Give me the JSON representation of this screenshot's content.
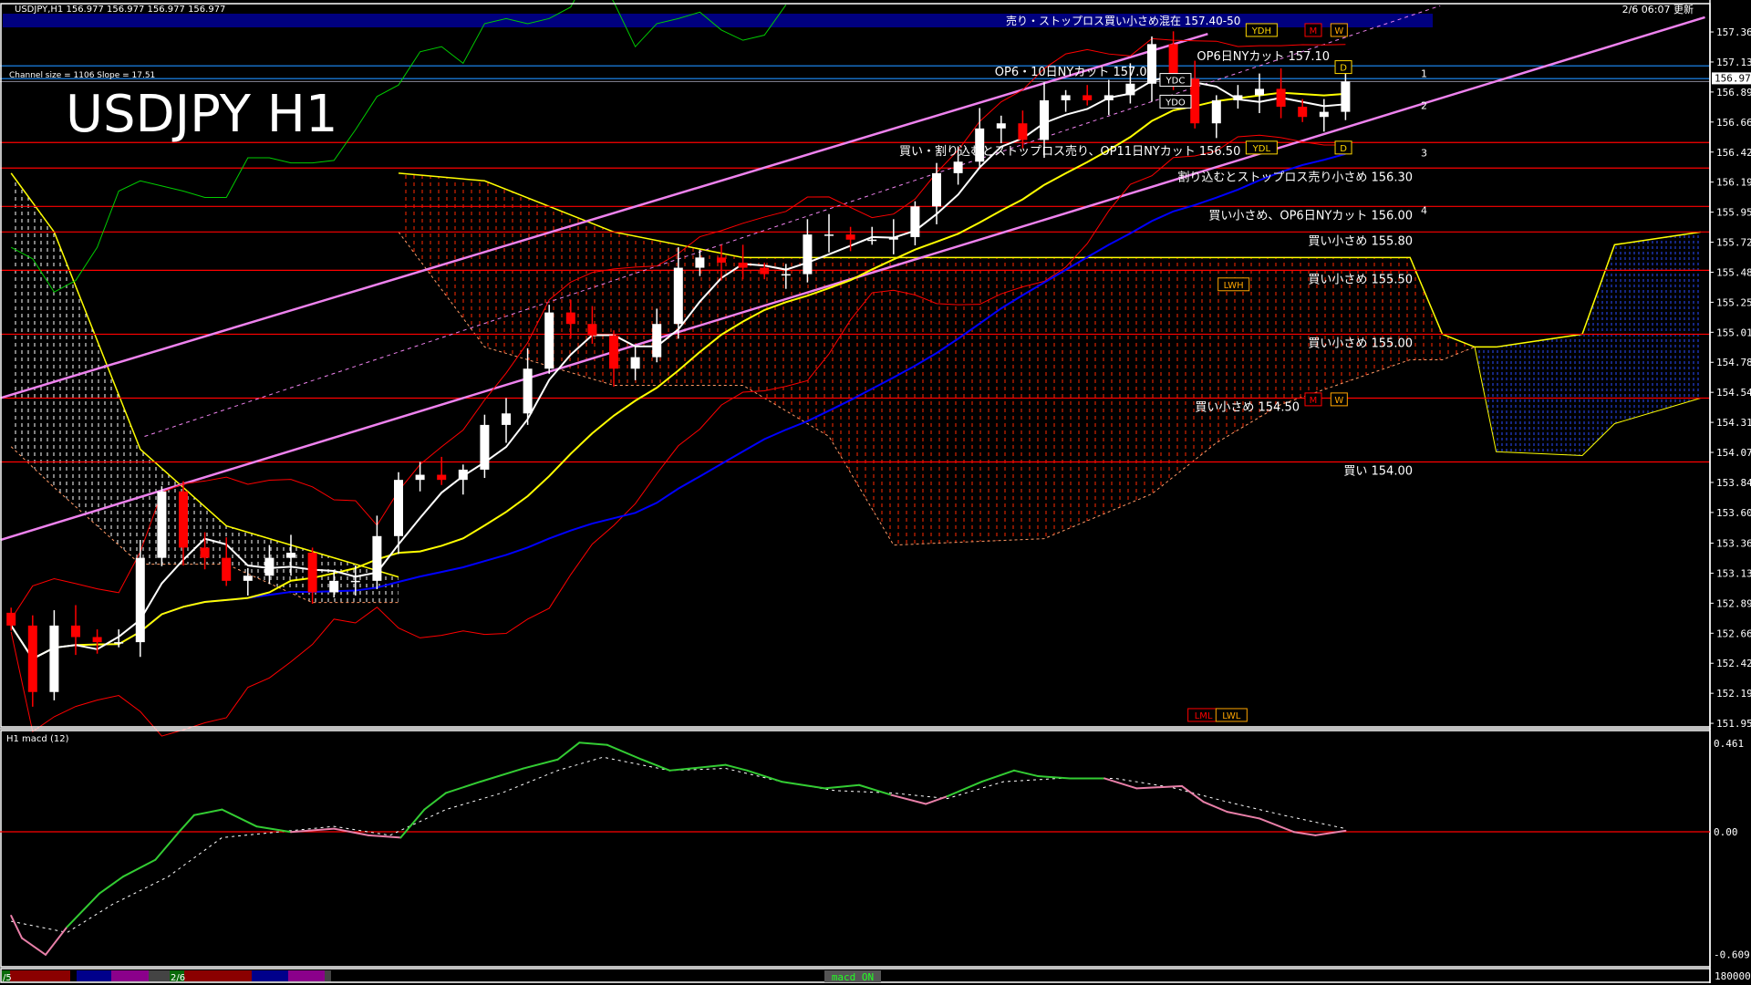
{
  "window": {
    "symbol_info": "USDJPY,H1  156.977 156.977 156.977 156.977",
    "title": "USDJPY H1",
    "channel_info": "Channel size = 1106 Slope = 17.51",
    "updated": "2/6 06:07 更新"
  },
  "top_banner": "売り・ストップロス買い小さめ混在 157.40-50",
  "levels": [
    {
      "price": 157.1,
      "label": "OP6日NYカット 157.10",
      "color": "#1e90ff",
      "label_side": "above"
    },
    {
      "price": 157.0,
      "label": "OP6・10日NYカット 157.00",
      "color": "#1e90ff",
      "label_side": "above"
    },
    {
      "price": 156.5,
      "label": "買い・割り込むとストップロス売り、OP11日NYカット 156.50",
      "color": "#ff0000",
      "label_side": "below"
    },
    {
      "price": 156.3,
      "label": "割り込むとストップロス売り小さめ 156.30",
      "color": "#ff0000",
      "label_side": "below"
    },
    {
      "price": 156.0,
      "label": "買い小さめ、OP6日NYカット 156.00",
      "color": "#ff0000",
      "label_side": "below"
    },
    {
      "price": 155.8,
      "label": "買い小さめ 155.80",
      "color": "#ff0000",
      "label_side": "below"
    },
    {
      "price": 155.5,
      "label": "買い小さめ 155.50",
      "color": "#ff0000",
      "label_side": "below"
    },
    {
      "price": 155.0,
      "label": "買い小さめ 155.00",
      "color": "#ff0000",
      "label_side": "below"
    },
    {
      "price": 154.5,
      "label": "買い小さめ 154.50",
      "color": "#ff0000",
      "label_side": "below"
    },
    {
      "price": 154.0,
      "label": "買い 154.00",
      "color": "#ff0000",
      "label_side": "below"
    }
  ],
  "markers": [
    {
      "text": "YDH",
      "bar": 58.1,
      "price": 157.38,
      "color": "#ffd700"
    },
    {
      "text": "M",
      "bar": 60.5,
      "price": 157.38,
      "color": "#ff0000"
    },
    {
      "text": "W",
      "bar": 61.7,
      "price": 157.38,
      "color": "#ffa500"
    },
    {
      "text": "YDC",
      "bar": 54.1,
      "price": 156.99,
      "color": "#ffffff"
    },
    {
      "text": "YDO",
      "bar": 54.1,
      "price": 156.82,
      "color": "#ffffff"
    },
    {
      "text": "D",
      "bar": 61.9,
      "price": 157.09,
      "color": "#ffd700"
    },
    {
      "text": "YDL",
      "bar": 58.1,
      "price": 156.46,
      "color": "#ffd700"
    },
    {
      "text": "D",
      "bar": 61.9,
      "price": 156.46,
      "color": "#ffd700"
    },
    {
      "text": "LWH",
      "bar": 56.8,
      "price": 155.39,
      "color": "#ffa500"
    },
    {
      "text": "M",
      "bar": 60.5,
      "price": 154.49,
      "color": "#ff0000"
    },
    {
      "text": "W",
      "bar": 61.7,
      "price": 154.49,
      "color": "#ffa500"
    },
    {
      "text": "LML",
      "bar": 55.4,
      "price": 152.02,
      "color": "#ff0000"
    },
    {
      "text": "LWL",
      "bar": 56.7,
      "price": 152.02,
      "color": "#ffa500"
    }
  ],
  "channel_numbers": [
    {
      "text": "1",
      "price": 157.04
    },
    {
      "text": "2",
      "price": 156.79
    },
    {
      "text": "3",
      "price": 156.42
    },
    {
      "text": "4",
      "price": 155.97
    }
  ],
  "price_axis": {
    "ticks": [
      "157.365",
      "157.130",
      "156.895",
      "156.660",
      "156.425",
      "156.190",
      "155.955",
      "155.720",
      "155.485",
      "155.250",
      "155.015",
      "154.780",
      "154.545",
      "154.310",
      "154.075",
      "153.840",
      "153.605",
      "153.365",
      "153.130",
      "152.895",
      "152.660",
      "152.425",
      "152.190",
      "151.955"
    ],
    "current": "156.977"
  },
  "macd_panel": {
    "label": "H1  macd (12)",
    "ticks": [
      "0.461",
      "0.00",
      "-0.609"
    ]
  },
  "volume_axis": "180000",
  "bottom_bar": {
    "labels": [
      "/5",
      "2/6"
    ],
    "toggle": "macd ON",
    "colors": [
      "#8b0000",
      "#00008b",
      "#8b008b",
      "#444444"
    ]
  },
  "colors": {
    "bull": "#ffffff",
    "bear": "#ff0000",
    "fast_ma": "#ffffff",
    "mid_ma": "#ffff00",
    "slow_ma": "#0000ff",
    "bands": "#ff0000",
    "lagging": "#00cc00",
    "channel": "#ee82ee",
    "banner": "#00007f",
    "macd_up": "#33cc33",
    "macd_down": "#e87fa8",
    "signal": "#ffffff",
    "zero": "#ff0000"
  },
  "chart_data": [
    {
      "type": "candlestick",
      "title": "USDJPY H1",
      "ylim": [
        151.927,
        157.558
      ],
      "xlim": [
        -0.5,
        79
      ],
      "grid": false,
      "closes": [
        152.72,
        152.2,
        152.72,
        152.63,
        152.59,
        152.59,
        153.25,
        153.77,
        153.33,
        153.25,
        153.07,
        153.11,
        153.25,
        153.29,
        152.98,
        153.07,
        153.07,
        153.42,
        153.86,
        153.9,
        153.86,
        153.94,
        154.29,
        154.38,
        154.73,
        155.17,
        155.08,
        154.99,
        154.73,
        154.82,
        155.08,
        155.52,
        155.6,
        155.56,
        155.52,
        155.47,
        155.47,
        155.78,
        155.78,
        155.74,
        155.74,
        155.76,
        156.0,
        156.26,
        156.35,
        156.61,
        156.65,
        156.52,
        156.83,
        156.87,
        156.83,
        156.87,
        156.96,
        157.27,
        157.0,
        156.65,
        156.83,
        156.87,
        156.92,
        156.78,
        156.7,
        156.74,
        156.977
      ],
      "cloud": [
        {
          "color": "#ffffff",
          "points": [
            [
              0,
              156.26,
              154.12
            ],
            [
              2,
              155.8,
              153.8
            ],
            [
              6,
              154.1,
              153.2
            ],
            [
              10,
              153.5,
              153.2
            ],
            [
              14,
              153.3,
              152.9
            ],
            [
              18,
              153.1,
              152.9
            ]
          ]
        },
        {
          "color": "#ff3300",
          "points": [
            [
              18,
              156.26,
              155.8
            ],
            [
              22,
              156.2,
              154.9
            ],
            [
              28,
              155.8,
              154.6
            ],
            [
              34,
              155.6,
              154.6
            ],
            [
              38,
              155.6,
              154.2
            ],
            [
              41,
              155.6,
              153.35
            ],
            [
              48,
              155.6,
              153.4
            ],
            [
              53,
              155.6,
              153.75
            ],
            [
              56,
              155.6,
              154.15
            ],
            [
              59,
              155.6,
              154.45
            ],
            [
              65,
              155.6,
              154.8
            ],
            [
              66.5,
              155.0,
              154.8
            ],
            [
              68,
              154.9,
              154.9
            ]
          ]
        },
        {
          "color": "#3355ff",
          "points": [
            [
              68,
              154.9,
              154.9
            ],
            [
              69,
              154.9,
              154.08
            ],
            [
              73,
              155.0,
              154.05
            ],
            [
              74.5,
              155.7,
              154.3
            ],
            [
              78.5,
              155.8,
              154.5
            ]
          ]
        }
      ],
      "channel_lines": [
        {
          "from": [
            -0.5,
            154.5
          ],
          "to": [
            55.6,
            157.35
          ],
          "style": "solid"
        },
        {
          "from": [
            -0.5,
            153.39
          ],
          "to": [
            78.7,
            157.48
          ],
          "style": "solid"
        },
        {
          "from": [
            6.2,
            154.2
          ],
          "to": [
            66.4,
            157.57
          ],
          "style": "dashed"
        }
      ]
    },
    {
      "type": "line",
      "title": "H1  macd (12)",
      "ylim": [
        -0.609,
        0.461
      ],
      "series": [
        {
          "x": [
            0,
            0.5,
            1.6,
            2.6,
            4.1,
            5.2,
            6.7,
            7.8,
            8.5,
            9.8,
            11.4,
            13.0,
            15.0,
            16.6,
            18.1,
            19.2,
            20.2,
            21.8,
            23.8,
            25.4,
            26.4,
            27.7,
            29.3,
            30.6,
            31.6,
            33.2,
            34.2,
            35.8,
            37.8,
            39.4,
            40.9,
            42.5,
            43.5,
            45.1,
            46.6,
            47.7,
            49.2,
            50.8,
            52.3,
            54.4,
            55.4,
            56.5,
            58.0,
            59.6,
            60.6,
            62.0
          ],
          "values": [
            -0.404,
            -0.512,
            -0.592,
            -0.458,
            -0.297,
            -0.216,
            -0.135,
            -0.001,
            0.08,
            0.107,
            0.026,
            -0.001,
            0.015,
            -0.017,
            -0.028,
            0.107,
            0.187,
            0.241,
            0.305,
            0.348,
            0.429,
            0.418,
            0.348,
            0.295,
            0.305,
            0.322,
            0.295,
            0.241,
            0.209,
            0.225,
            0.177,
            0.134,
            0.171,
            0.241,
            0.295,
            0.268,
            0.257,
            0.257,
            0.209,
            0.22,
            0.144,
            0.096,
            0.064,
            -0.001,
            -0.017,
            0.005
          ]
        },
        {
          "x": [
            0,
            2.6,
            4.7,
            7.3,
            9.8,
            12.4,
            15.0,
            17.6,
            20.2,
            22.8,
            25.4,
            27.5,
            30.6,
            33.2,
            35.8,
            38.3,
            40.9,
            43.5,
            46.1,
            48.7,
            51.3,
            53.9,
            56.5,
            59.1,
            62.0
          ],
          "values": [
            -0.431,
            -0.485,
            -0.35,
            -0.216,
            -0.028,
            -0.001,
            0.026,
            -0.017,
            0.107,
            0.187,
            0.295,
            0.359,
            0.295,
            0.305,
            0.241,
            0.198,
            0.187,
            0.16,
            0.241,
            0.257,
            0.257,
            0.214,
            0.144,
            0.08,
            0.015
          ]
        }
      ]
    }
  ]
}
